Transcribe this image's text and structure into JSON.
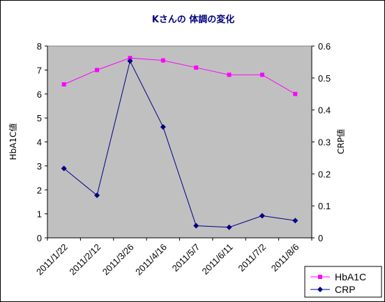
{
  "chart_data": {
    "type": "line",
    "title": "Kさんの 体調の変化",
    "categories": [
      "2011/1/22",
      "2011/2/12",
      "2011/3/26",
      "2011/4/16",
      "2011/5/7",
      "2011/6/11",
      "2011/7/2",
      "2011/8/6"
    ],
    "y_left": {
      "label": "HbA1C値",
      "ylim": [
        0,
        8
      ],
      "ticks": [
        "0",
        "1",
        "2",
        "3",
        "4",
        "5",
        "6",
        "7",
        "8"
      ]
    },
    "y_right": {
      "label": "CRP値",
      "ylim": [
        0,
        0.6
      ],
      "ticks": [
        "0",
        "0.1",
        "0.2",
        "0.3",
        "0.4",
        "0.5",
        "0.6"
      ]
    },
    "series": [
      {
        "name": "HbA1C",
        "axis": "left",
        "values": [
          6.4,
          7.0,
          7.5,
          7.4,
          7.1,
          6.8,
          6.8,
          6.0
        ],
        "color": "#ff00ff",
        "marker": "square"
      },
      {
        "name": "CRP",
        "axis": "right",
        "values": [
          0.217,
          0.133,
          0.553,
          0.347,
          0.038,
          0.033,
          0.069,
          0.054
        ],
        "color": "#000080",
        "marker": "diamond"
      }
    ],
    "plot_background": "#c0c0c0",
    "grid": false,
    "legend_position": "bottom-right"
  }
}
